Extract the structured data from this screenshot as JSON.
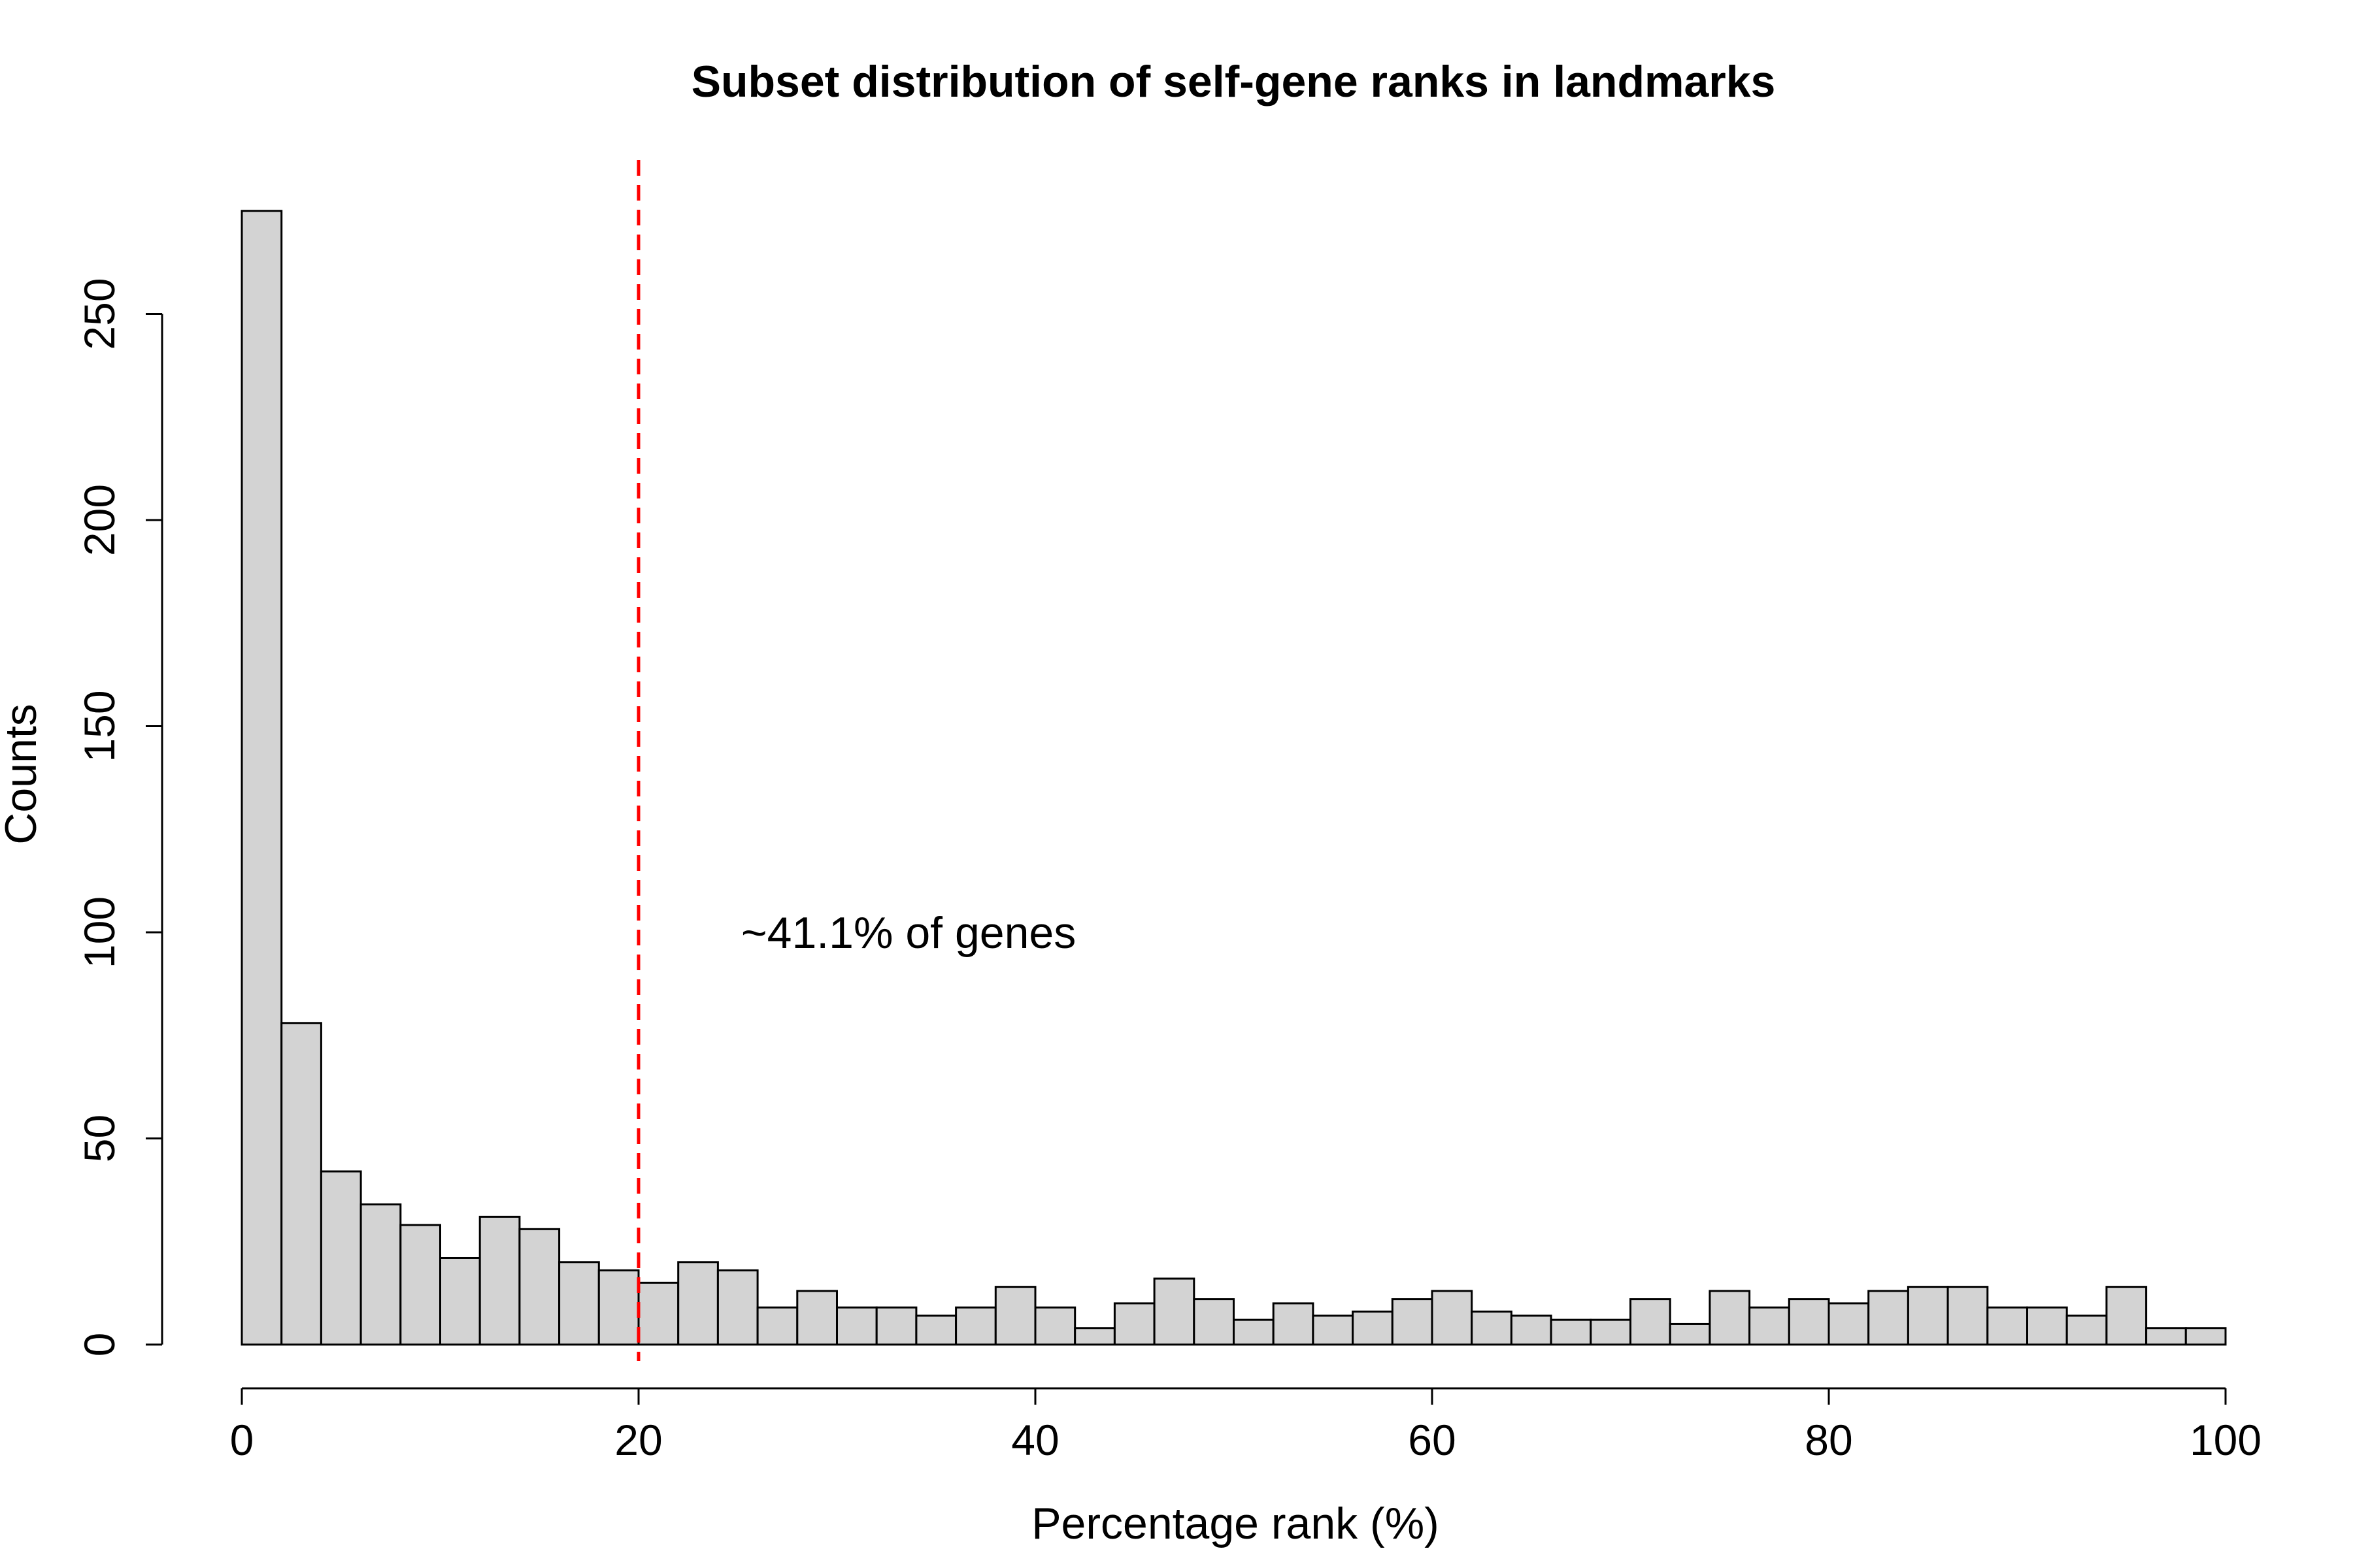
{
  "chart_data": {
    "type": "bar",
    "title": "Subset distribution of self-gene ranks in landmarks",
    "xlabel": "Percentage rank (%)",
    "ylabel": "Counts",
    "xlim": [
      0,
      100
    ],
    "ylim": [
      0,
      280
    ],
    "x_ticks": [
      "0",
      "20",
      "40",
      "60",
      "80",
      "100"
    ],
    "y_ticks": [
      "0",
      "50",
      "100",
      "150",
      "200",
      "250"
    ],
    "bin_width": 2,
    "bin_starts": [
      0,
      2,
      4,
      6,
      8,
      10,
      12,
      14,
      16,
      18,
      20,
      22,
      24,
      26,
      28,
      30,
      32,
      34,
      36,
      38,
      40,
      42,
      44,
      46,
      48,
      50,
      52,
      54,
      56,
      58,
      60,
      62,
      64,
      66,
      68,
      70,
      72,
      74,
      76,
      78,
      80,
      82,
      84,
      86,
      88,
      90,
      92,
      94,
      96,
      98
    ],
    "values": [
      275,
      78,
      42,
      34,
      29,
      21,
      31,
      28,
      20,
      18,
      15,
      20,
      18,
      9,
      13,
      9,
      9,
      7,
      9,
      14,
      9,
      4,
      10,
      16,
      11,
      6,
      10,
      7,
      8,
      11,
      13,
      8,
      7,
      6,
      6,
      11,
      5,
      13,
      9,
      11,
      10,
      13,
      14,
      14,
      9,
      9,
      7,
      14,
      4,
      4
    ],
    "bar_color": "#d3d3d3",
    "reference_line": {
      "x": 20,
      "color": "#ff0000",
      "style": "dashed"
    },
    "annotation": {
      "text": "~41.1% of genes",
      "x": 25.5,
      "y": 100
    },
    "grid": false,
    "legend": "none"
  }
}
